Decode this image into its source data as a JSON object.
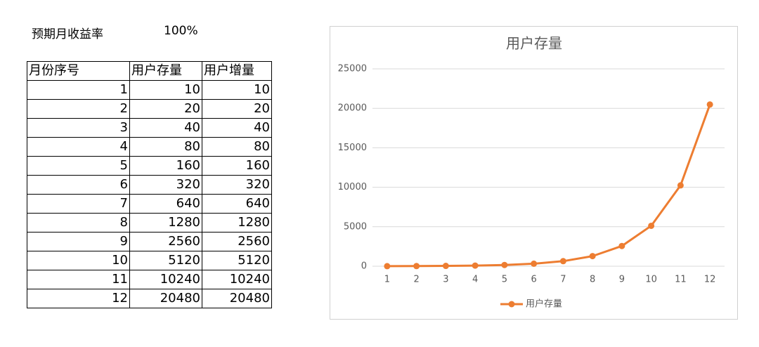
{
  "settings": {
    "label": "预期月收益率",
    "value": "100%"
  },
  "table": {
    "header": [
      "月份序号",
      "用户存量",
      "用户增量"
    ],
    "rows": [
      [
        1,
        10,
        10
      ],
      [
        2,
        20,
        20
      ],
      [
        3,
        40,
        40
      ],
      [
        4,
        80,
        80
      ],
      [
        5,
        160,
        160
      ],
      [
        6,
        320,
        320
      ],
      [
        7,
        640,
        640
      ],
      [
        8,
        1280,
        1280
      ],
      [
        9,
        2560,
        2560
      ],
      [
        10,
        5120,
        5120
      ],
      [
        11,
        10240,
        10240
      ],
      [
        12,
        20480,
        20480
      ]
    ]
  },
  "chart_data": {
    "type": "line",
    "title": "用户存量",
    "categories": [
      "1",
      "2",
      "3",
      "4",
      "5",
      "6",
      "7",
      "8",
      "9",
      "10",
      "11",
      "12"
    ],
    "series": [
      {
        "name": "用户存量",
        "color": "#ed7d31",
        "values": [
          10,
          20,
          40,
          80,
          160,
          320,
          640,
          1280,
          2560,
          5120,
          10240,
          20480
        ]
      }
    ],
    "ylim": [
      0,
      25000
    ],
    "yticks": [
      0,
      5000,
      10000,
      15000,
      20000,
      25000
    ],
    "grid": true,
    "legend": "bottom"
  }
}
